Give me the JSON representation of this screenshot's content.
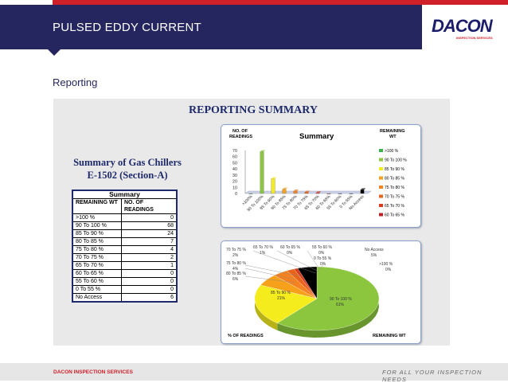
{
  "header": {
    "title": "PULSED EDDY CURRENT"
  },
  "logo": {
    "name": "DACON",
    "tagline": "INSPECTION SERVICES"
  },
  "section": {
    "heading": "Reporting"
  },
  "report": {
    "title": "REPORTING SUMMARY",
    "subtitle_line1": "Summary of Gas Chillers",
    "subtitle_line2": "E-1502 (Section-A)"
  },
  "summary_table": {
    "caption": "Summary",
    "col1": "REMAINING WT",
    "col2": "NO. OF READINGS",
    "rows": [
      {
        "label": ">100 %",
        "value": "0"
      },
      {
        "label": "90 To 100 %",
        "value": "68"
      },
      {
        "label": "85 To 90 %",
        "value": "24"
      },
      {
        "label": "80 To 85 %",
        "value": "7"
      },
      {
        "label": "75 To 80 %",
        "value": "4"
      },
      {
        "label": "70 To 75 %",
        "value": "2"
      },
      {
        "label": "65 To 70 %",
        "value": "1"
      },
      {
        "label": "60 To 65 %",
        "value": "0"
      },
      {
        "label": "55 To 60 %",
        "value": "0"
      },
      {
        "label": " 0 To 55 %",
        "value": "0"
      },
      {
        "label": "No Access",
        "value": "6"
      }
    ]
  },
  "chart_data": [
    {
      "type": "bar",
      "title": "Summary",
      "ylabel": "NO. OF READINGS",
      "legend_title": "REMAINING WT",
      "categories": [
        ">100 %",
        "90 To 100 %",
        "85 To 90 %",
        "80 To 85 %",
        "75 To 80 %",
        "70 To 75 %",
        "65 To 70 %",
        "60 To 65 %",
        "55 To 60 %",
        "0 To 55 %",
        "No Access"
      ],
      "values": [
        0,
        68,
        24,
        7,
        4,
        2,
        1,
        0,
        0,
        0,
        6
      ],
      "yticks": [
        0,
        10,
        20,
        30,
        40,
        50,
        60,
        70
      ],
      "ylim": [
        0,
        70
      ],
      "colors": [
        "#3cb44b",
        "#8cc63f",
        "#f5ec1e",
        "#f7a11a",
        "#f58220",
        "#e8641a",
        "#d93a1b",
        "#c02025",
        "#3a4fa0",
        "#2f56a6",
        "#000000"
      ],
      "legend": [
        ">100 %",
        "90 To 100 %",
        "85 To 90 %",
        "80 To 85 %",
        "75 To 80 %",
        "70 To 75 %",
        "65 To 70 %",
        "60 To 65 %"
      ],
      "legend_colors": [
        "#3cb44b",
        "#8cc63f",
        "#f5ec1e",
        "#f7a11a",
        "#f58220",
        "#e8641a",
        "#d93a1b",
        "#c02025"
      ]
    },
    {
      "type": "pie",
      "xlabel": "% OF READINGS",
      "legend_title": "REMAINING WT",
      "slices": [
        {
          "label": "90 To 100 %",
          "value": 61,
          "color": "#8cc63f"
        },
        {
          "label": "85 To 90 %",
          "value": 21,
          "color": "#f5ec1e"
        },
        {
          "label": "80 To 85 %",
          "value": 6,
          "color": "#f7a11a"
        },
        {
          "label": "75 To 80 %",
          "value": 4,
          "color": "#f58220"
        },
        {
          "label": "70 To 75 %",
          "value": 2,
          "color": "#e8641a"
        },
        {
          "label": "65 To 70 %",
          "value": 1,
          "color": "#d93a1b"
        },
        {
          "label": "60 To 65 %",
          "value": 0,
          "color": "#c02025"
        },
        {
          "label": "55 To 60 %",
          "value": 0,
          "color": "#3a4fa0"
        },
        {
          "label": "0 To 55 %",
          "value": 0,
          "color": "#2f56a6"
        },
        {
          "label": "No Access",
          "value": 5,
          "color": "#000000"
        },
        {
          "label": ">100 %",
          "value": 0,
          "color": "#3cb44b"
        }
      ],
      "labels_text": [
        {
          "name": "No Access",
          "pct": "5%"
        },
        {
          "name": ">100 %",
          "pct": "0%"
        },
        {
          "name": "90 To 100 %",
          "pct": "61%"
        },
        {
          "name": "85 To 90 %",
          "pct": "21%"
        },
        {
          "name": "80 To 85 %",
          "pct": "6%"
        },
        {
          "name": "75 To 80 %",
          "pct": "4%"
        },
        {
          "name": "70 To 75 %",
          "pct": "2%"
        },
        {
          "name": "65 To 70 %",
          "pct": "1%"
        },
        {
          "name": "60 To 65 %",
          "pct": "0%"
        },
        {
          "name": "55 To 60 %",
          "pct": "0%"
        },
        {
          "name": "0 To 55 %",
          "pct": "0%"
        }
      ]
    }
  ],
  "footer": {
    "left": "DACON INSPECTION SERVICES",
    "right": "FOR ALL YOUR INSPECTION NEEDS"
  }
}
